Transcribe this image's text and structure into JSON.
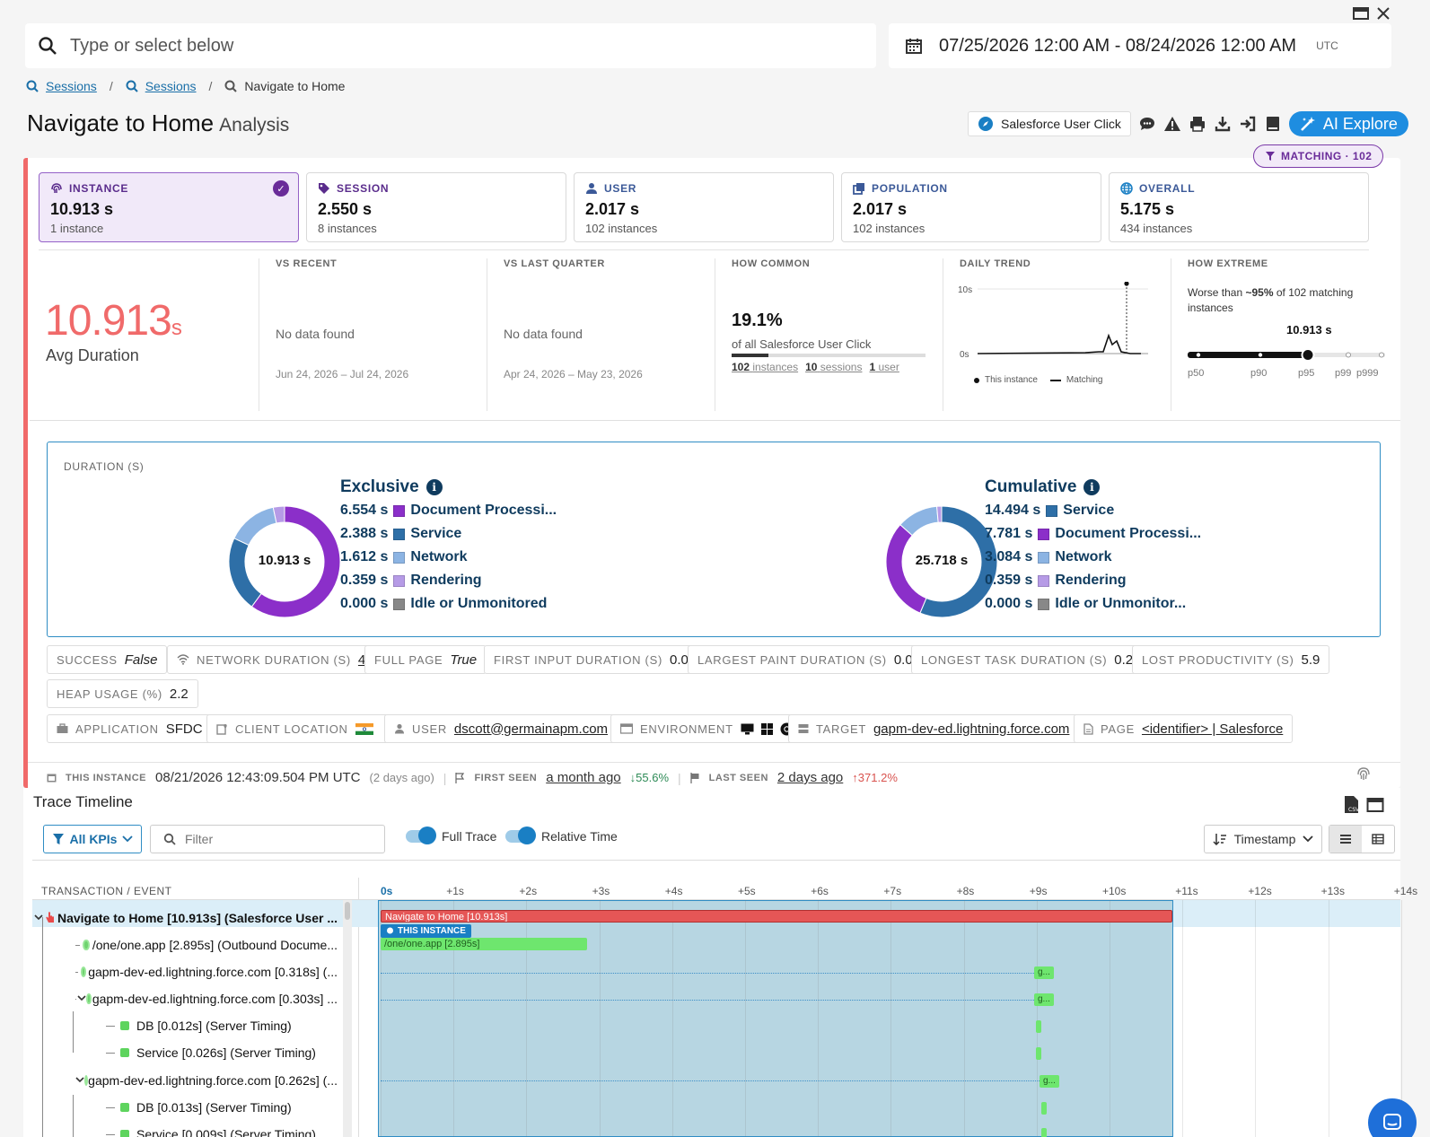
{
  "search": {
    "placeholder": "Type or select below"
  },
  "daterange": {
    "value": "07/25/2026 12:00 AM - 08/24/2026 12:00 AM",
    "tz": "UTC"
  },
  "breadcrumb": {
    "items": [
      "Sessions",
      "Sessions",
      "Navigate to Home"
    ]
  },
  "title": {
    "main": "Navigate to Home",
    "sub": "Analysis"
  },
  "toolbar": {
    "category": "Salesforce User Click",
    "ai": "AI Explore"
  },
  "matching": "MATCHING · 102",
  "cards": [
    {
      "label": "INSTANCE",
      "value": "10.913 s",
      "sub": "1 instance"
    },
    {
      "label": "SESSION",
      "value": "2.550 s",
      "sub": "8 instances"
    },
    {
      "label": "USER",
      "value": "2.017 s",
      "sub": "102 instances"
    },
    {
      "label": "POPULATION",
      "value": "2.017 s",
      "sub": "102 instances"
    },
    {
      "label": "OVERALL",
      "value": "5.175 s",
      "sub": "434 instances"
    }
  ],
  "summary": {
    "value": "10.913",
    "unit": "s",
    "label": "Avg Duration"
  },
  "vs_recent": {
    "h": "VS RECENT",
    "text": "No data found",
    "range": "Jun 24, 2026 – Jul 24, 2026"
  },
  "vs_quarter": {
    "h": "VS LAST QUARTER",
    "text": "No data found",
    "range": "Apr 24, 2026 – May 23, 2026"
  },
  "how_common": {
    "h": "HOW COMMON",
    "pct": "19.1%",
    "desc": "of all Salesforce User Click",
    "fill": 0.191,
    "i_n": "102",
    "i_l": "instances",
    "s_n": "10",
    "s_l": "sessions",
    "u_n": "1",
    "u_l": "user"
  },
  "daily_trend": {
    "h": "DAILY TREND",
    "ymax": "10s",
    "ymin": "0s",
    "leg1": "This instance",
    "leg2": "Matching"
  },
  "how_extreme": {
    "h": "HOW EXTREME",
    "pre": "Worse than ",
    "pct": "~95%",
    "post": " of 102 matching instances",
    "val": "10.913 s",
    "ticks": [
      "p50",
      "p90",
      "p95",
      "p99",
      "p999"
    ]
  },
  "duration": {
    "header": "DURATION (S)",
    "exclusive": {
      "title": "Exclusive",
      "total": "10.913 s",
      "items": [
        {
          "v": "6.554 s",
          "n": "Document Processi...",
          "c": "#8b2fc9"
        },
        {
          "v": "2.388 s",
          "n": "Service",
          "c": "#2e6fa7"
        },
        {
          "v": "1.612 s",
          "n": "Network",
          "c": "#8cb4e3"
        },
        {
          "v": "0.359 s",
          "n": "Rendering",
          "c": "#b69be6"
        },
        {
          "v": "0.000 s",
          "n": "Idle or Unmonitored",
          "c": "#888888"
        }
      ]
    },
    "cumulative": {
      "title": "Cumulative",
      "total": "25.718 s",
      "items": [
        {
          "v": "14.494 s",
          "n": "Service",
          "c": "#2e6fa7"
        },
        {
          "v": "7.781 s",
          "n": "Document Processi...",
          "c": "#8b2fc9"
        },
        {
          "v": "3.084 s",
          "n": "Network",
          "c": "#8cb4e3"
        },
        {
          "v": "0.359 s",
          "n": "Rendering",
          "c": "#b69be6"
        },
        {
          "v": "0.000 s",
          "n": "Idle or Unmonitor...",
          "c": "#888888"
        }
      ]
    }
  },
  "attrs": [
    {
      "k": "SUCCESS",
      "v": "False"
    },
    {
      "k": "NETWORK DURATION (S)",
      "v": "4"
    },
    {
      "k": "FULL PAGE",
      "v": "True"
    },
    {
      "k": "FIRST INPUT DURATION (S)",
      "v": "0.0"
    },
    {
      "k": "LARGEST PAINT DURATION (S)",
      "v": "0.0"
    },
    {
      "k": "LONGEST TASK DURATION (S)",
      "v": "0.2"
    },
    {
      "k": "LOST PRODUCTIVITY (S)",
      "v": "5.9"
    },
    {
      "k": "HEAP USAGE (%)",
      "v": "2.2"
    },
    {
      "k": "APPLICATION",
      "v": "SFDC"
    },
    {
      "k": "CLIENT LOCATION",
      "v": ""
    },
    {
      "k": "USER",
      "v": "dscott@germainapm.com"
    },
    {
      "k": "ENVIRONMENT",
      "v": ""
    },
    {
      "k": "TARGET",
      "v": "gapm-dev-ed.lightning.force.com"
    },
    {
      "k": "PAGE",
      "v": "<identifier> | Salesforce"
    }
  ],
  "footer": {
    "k1": "THIS INSTANCE",
    "v1": "08/21/2026 12:43:09.504 PM UTC",
    "m1": "(2 days ago)",
    "k2": "FIRST SEEN",
    "v2": "a month ago",
    "d2": "↓55.6%",
    "k3": "LAST SEEN",
    "v3": "2 days ago",
    "d3": "↑371.2%"
  },
  "timeline": {
    "title": "Trace Timeline",
    "kpis": "All KPIs",
    "filter_placeholder": "Filter",
    "full_trace": "Full Trace",
    "relative_time": "Relative Time",
    "sort": "Timestamp",
    "col": "TRANSACTION / EVENT",
    "ticks": [
      "0s",
      "+1s",
      "+2s",
      "+3s",
      "+4s",
      "+5s",
      "+6s",
      "+7s",
      "+8s",
      "+9s",
      "+10s",
      "+11s",
      "+12s",
      "+13s",
      "+14s"
    ],
    "rows": [
      "Navigate to Home [10.913s] (Salesforce User ...",
      "/one/one.app [2.895s] (Outbound Docume...",
      "gapm-dev-ed.lightning.force.com [0.318s] (...",
      "gapm-dev-ed.lightning.force.com [0.303s] ...",
      "DB [0.012s] (Server Timing)",
      "Service [0.026s] (Server Timing)",
      "gapm-dev-ed.lightning.force.com [0.262s] (...",
      "DB [0.013s] (Server Timing)",
      "Service [0.009s] (Server Timing)"
    ],
    "bar_main": "Navigate to Home [10.913s]",
    "this_instance": "THIS INSTANCE",
    "bar_one": "/one/one.app [2.895s]",
    "bar_g": "g..."
  }
}
